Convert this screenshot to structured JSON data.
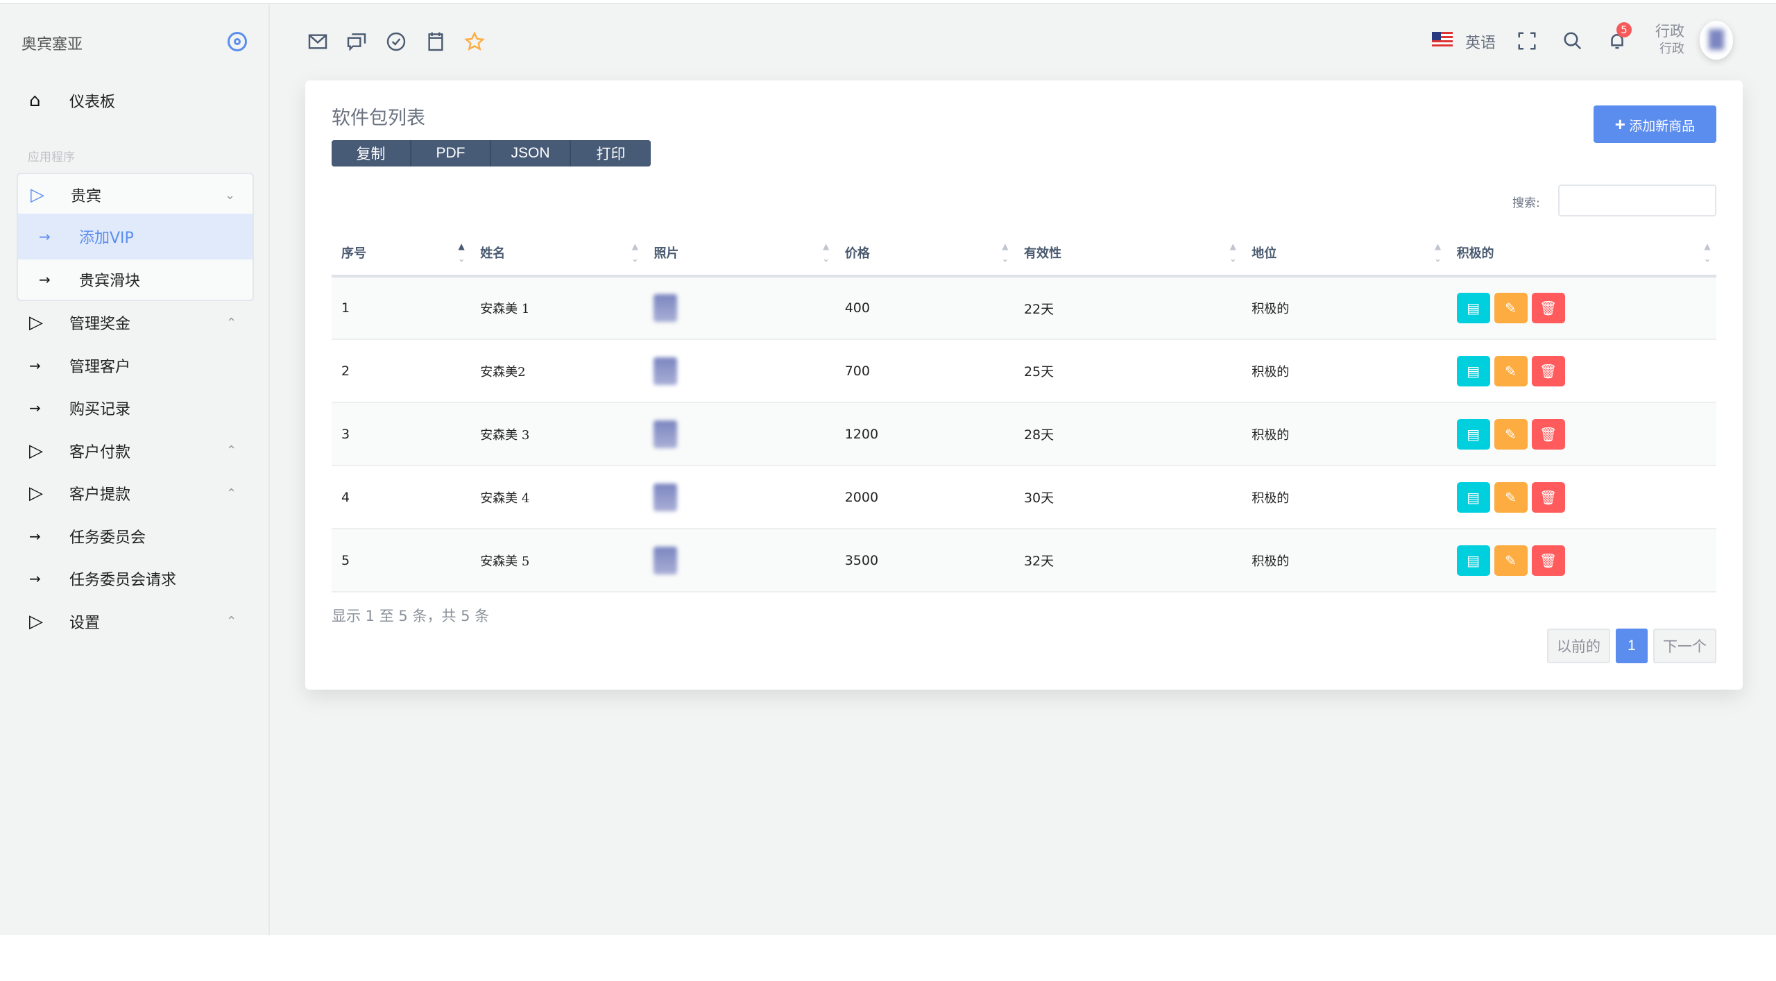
{
  "brand": "奥宾塞亚",
  "sidebar": {
    "dashboard": "仪表板",
    "section": "应用程序",
    "vip": {
      "label": "贵宾",
      "children": [
        "添加VIP",
        "贵宾滑块"
      ]
    },
    "items": [
      {
        "label": "管理奖金",
        "type": "group"
      },
      {
        "label": "管理客户",
        "type": "link"
      },
      {
        "label": "购买记录",
        "type": "link"
      },
      {
        "label": "客户付款",
        "type": "group"
      },
      {
        "label": "客户提款",
        "type": "group"
      },
      {
        "label": "任务委员会",
        "type": "link"
      },
      {
        "label": "任务委员会请求",
        "type": "link"
      },
      {
        "label": "设置",
        "type": "group"
      }
    ]
  },
  "topbar": {
    "language": "英语",
    "notifications": "5",
    "user_name": "行政",
    "user_role": "行政"
  },
  "card": {
    "title": "软件包列表",
    "export_buttons": [
      "复制",
      "PDF",
      "JSON",
      "打印"
    ],
    "add_button": "添加新商品",
    "search_label": "搜索:",
    "search_value": "",
    "columns": [
      "序号",
      "姓名",
      "照片",
      "价格",
      "有效性",
      "地位",
      "积极的"
    ],
    "rows": [
      [
        "1",
        "安森美 1",
        "400",
        "22天",
        "积极的"
      ],
      [
        "2",
        "安森美2",
        "700",
        "25天",
        "积极的"
      ],
      [
        "3",
        "安森美 3",
        "1200",
        "28天",
        "积极的"
      ],
      [
        "4",
        "安森美 4",
        "2000",
        "30天",
        "积极的"
      ],
      [
        "5",
        "安森美 5",
        "3500",
        "32天",
        "积极的"
      ]
    ],
    "info": "显示 1 至 5 条，共 5 条",
    "pager": {
      "prev": "以前的",
      "current": "1",
      "next": "下一个"
    }
  },
  "colors": {
    "accent": "#5b8def",
    "view": "#00cfdd",
    "edit": "#fdac41",
    "delete": "#ff5b5c"
  }
}
